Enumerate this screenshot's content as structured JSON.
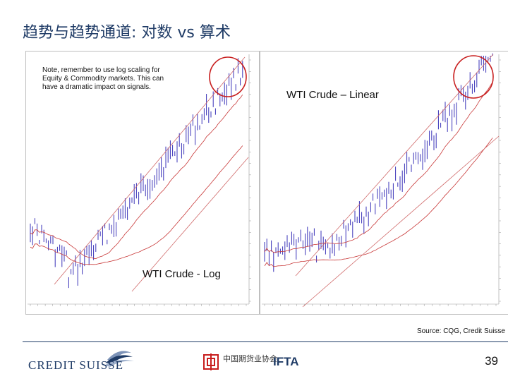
{
  "slide": {
    "title": "趋势与趋势通道: 对数 vs 算术",
    "note": "Note, remember to use log scaling for Equity & Commodity markets.  This can have a dramatic impact on signals.",
    "source": "Source: CQG, Credit Suisse",
    "page_number": "39",
    "logos": {
      "credit_suisse": "CREDIT SUISSE",
      "cfta_cn": "中国期货业协会",
      "ifta": "IFTA"
    },
    "colors": {
      "title": "#1f3b66",
      "price_bar": "#3a33b8",
      "moving_average": "#c83737",
      "channel_line": "#d06a6a",
      "highlight_circle": "#c81e1e"
    }
  },
  "chart_data": [
    {
      "type": "bar",
      "name": "WTI Crude - Log",
      "title": "WTI Crude - Log",
      "scale": "log",
      "grid": false,
      "annotation": "circle around peak (top-right)"
    },
    {
      "type": "bar",
      "name": "WTI Crude – Linear",
      "title": "WTI Crude – Linear",
      "scale": "linear",
      "grid": false,
      "annotation": "circle around peak (top-right)"
    }
  ]
}
